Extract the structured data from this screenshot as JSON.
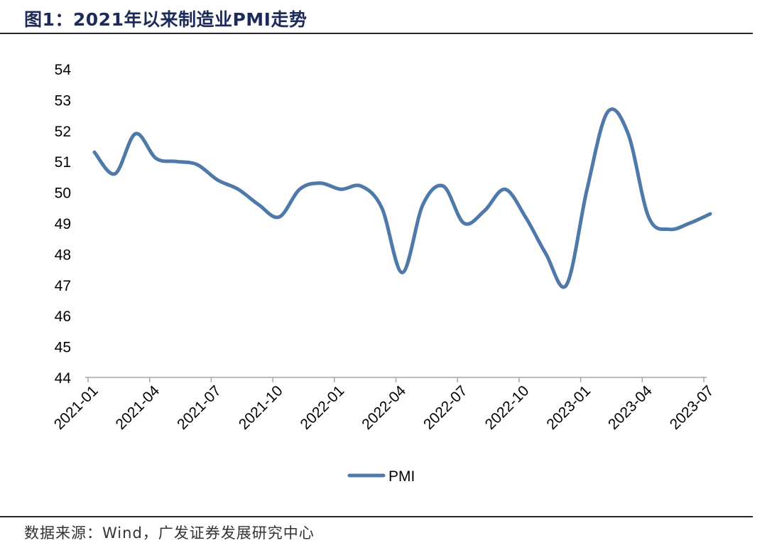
{
  "figure": {
    "title": "图1：2021年以来制造业PMI走势",
    "source": "数据来源：Wind，广发证券发展研究中心"
  },
  "colors": {
    "series": "#4f79a9",
    "axis": "#a6a6a6",
    "text": "#000000",
    "title": "#1d2b5a"
  },
  "chart_data": {
    "type": "line",
    "title": "",
    "xlabel": "",
    "ylabel": "",
    "ylim": [
      44,
      54
    ],
    "yticks": [
      44,
      45,
      46,
      47,
      48,
      49,
      50,
      51,
      52,
      53,
      54
    ],
    "xtick_labels": [
      "2021-01",
      "2021-04",
      "2021-07",
      "2021-10",
      "2022-01",
      "2022-04",
      "2022-07",
      "2022-10",
      "2023-01",
      "2023-04",
      "2023-07"
    ],
    "grid": false,
    "legend": "bottom",
    "categories": [
      "2021-01",
      "2021-02",
      "2021-03",
      "2021-04",
      "2021-05",
      "2021-06",
      "2021-07",
      "2021-08",
      "2021-09",
      "2021-10",
      "2021-11",
      "2021-12",
      "2022-01",
      "2022-02",
      "2022-03",
      "2022-04",
      "2022-05",
      "2022-06",
      "2022-07",
      "2022-08",
      "2022-09",
      "2022-10",
      "2022-11",
      "2022-12",
      "2023-01",
      "2023-02",
      "2023-03",
      "2023-04",
      "2023-05",
      "2023-06",
      "2023-07"
    ],
    "series": [
      {
        "name": "PMI",
        "values": [
          51.3,
          50.6,
          51.9,
          51.1,
          51.0,
          50.9,
          50.4,
          50.1,
          49.6,
          49.2,
          50.1,
          50.3,
          50.1,
          50.2,
          49.5,
          47.4,
          49.6,
          50.2,
          49.0,
          49.4,
          50.1,
          49.2,
          48.0,
          47.0,
          50.1,
          52.6,
          51.9,
          49.2,
          48.8,
          49.0,
          49.3
        ]
      }
    ]
  }
}
